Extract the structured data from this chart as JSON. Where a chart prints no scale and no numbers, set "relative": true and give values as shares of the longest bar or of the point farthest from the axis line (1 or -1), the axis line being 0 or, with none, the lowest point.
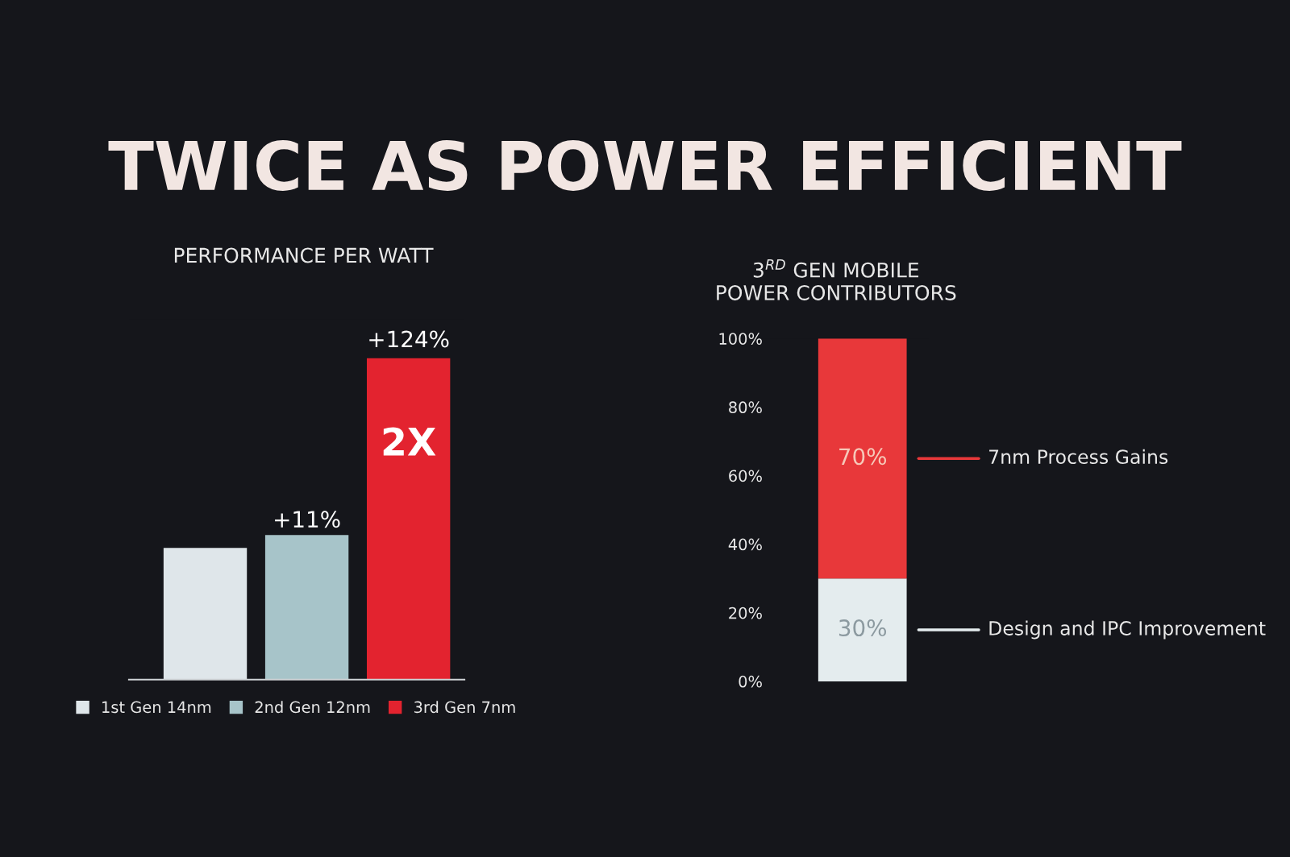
{
  "chart_data": [
    {
      "type": "bar",
      "title": "TWICE AS POWER EFFICIENT",
      "subtitle": "PERFORMANCE PER WATT",
      "relative": true,
      "categories": [
        "1st Gen 14nm",
        "2nd Gen 12nm",
        "3rd Gen 7nm"
      ],
      "series": [
        {
          "colors": [
            "#dfe6ea",
            "#a7c4c9",
            "#e3232f"
          ],
          "values": [
            0.41,
            0.45,
            1
          ]
        }
      ],
      "annotations": [
        "+11%",
        "+124%",
        "2X"
      ]
    },
    {
      "type": "bar",
      "title": "3$^{RD}$ GEN MOBILE\nPOWER CONTRIBUTORS",
      "stacked": true,
      "categories": [
        null
      ],
      "legend": "right",
      "ylim": [
        0,
        100
      ],
      "yticks": [
        {
          "value": 0,
          "label": "0%"
        },
        {
          "value": 20,
          "label": "20%"
        },
        {
          "value": 40,
          "label": "40%"
        },
        {
          "value": 60,
          "label": "60%"
        },
        {
          "value": 80,
          "label": "80%"
        },
        {
          "value": 100,
          "label": "100%"
        }
      ],
      "series": [
        {
          "name": "Design and IPC Improvement",
          "color": "#e4ecee",
          "values": [
            30
          ],
          "value_labels": [
            "30%"
          ]
        },
        {
          "name": "7nm Process Gains",
          "color": "#e8383a",
          "values": [
            70
          ],
          "value_labels": [
            "70%"
          ]
        }
      ]
    }
  ]
}
